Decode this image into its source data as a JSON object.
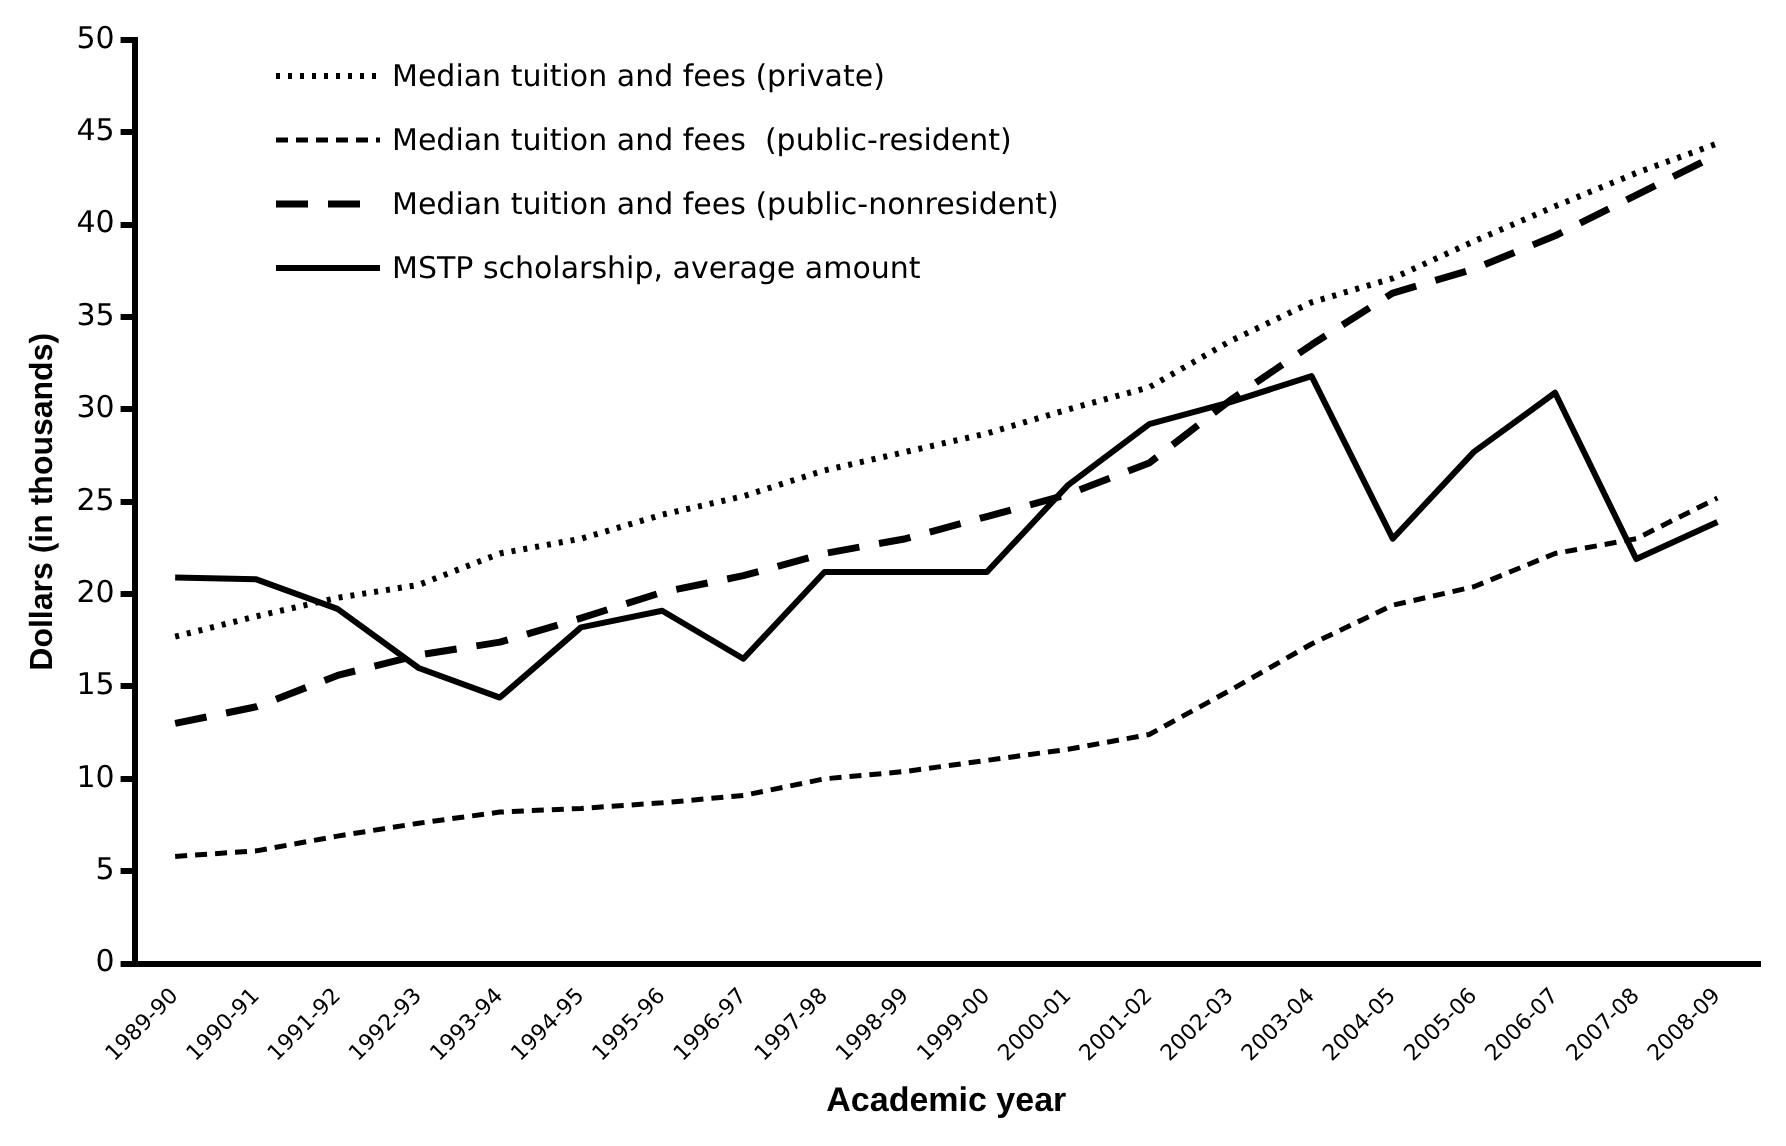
{
  "chart_data": {
    "type": "line",
    "xlabel": "Academic year",
    "ylabel": "Dollars (in thousands)",
    "categories": [
      "1989-90",
      "1990-91",
      "1991-92",
      "1992-93",
      "1993-94",
      "1994-95",
      "1995-96",
      "1996-97",
      "1997-98",
      "1998-99",
      "1999-00",
      "2000-01",
      "2001-02",
      "2002-03",
      "2003-04",
      "2004-05",
      "2005-06",
      "2006-07",
      "2007-08",
      "2008-09"
    ],
    "ylim": [
      0,
      50
    ],
    "yticks": [
      0,
      5,
      10,
      15,
      20,
      25,
      30,
      35,
      40,
      45,
      50
    ],
    "grid": false,
    "legend": "top left",
    "marker": "none",
    "series": [
      {
        "name": "Median tuition and fees (private)",
        "color": "#000000",
        "line_style": "dotted",
        "values": [
          17.7,
          18.8,
          19.8,
          20.5,
          22.2,
          23,
          24.3,
          25.3,
          26.7,
          27.7,
          28.7,
          30,
          31.2,
          33.7,
          35.8,
          37.1,
          39.1,
          41,
          42.8,
          44.4
        ]
      },
      {
        "name": "Median tuition and fees  (public-resident)",
        "color": "#000000",
        "line_style": "dashed",
        "values": [
          5.8,
          6.1,
          6.9,
          7.6,
          8.2,
          8.4,
          8.7,
          9.1,
          10,
          10.4,
          11,
          11.6,
          12.4,
          14.8,
          17.3,
          19.4,
          20.4,
          22.2,
          23,
          25.2
        ]
      },
      {
        "name": "Median tuition and fees (public-nonresident)",
        "color": "#000000",
        "line_style": "dashed",
        "values": [
          13,
          13.9,
          15.6,
          16.7,
          17.4,
          18.7,
          20.1,
          21,
          22.2,
          23,
          24.2,
          25.4,
          27.1,
          30.5,
          33.5,
          36.3,
          37.6,
          39.4,
          41.6,
          43.8
        ]
      },
      {
        "name": "MSTP scholarship, average amount",
        "color": "#000000",
        "line_style": "solid",
        "values": [
          20.9,
          20.8,
          19.2,
          16,
          14.4,
          18.2,
          19.1,
          16.5,
          21.2,
          21.2,
          21.2,
          25.9,
          29.2,
          30.4,
          31.8,
          23,
          27.7,
          30.9,
          21.9,
          23.9
        ]
      }
    ]
  }
}
